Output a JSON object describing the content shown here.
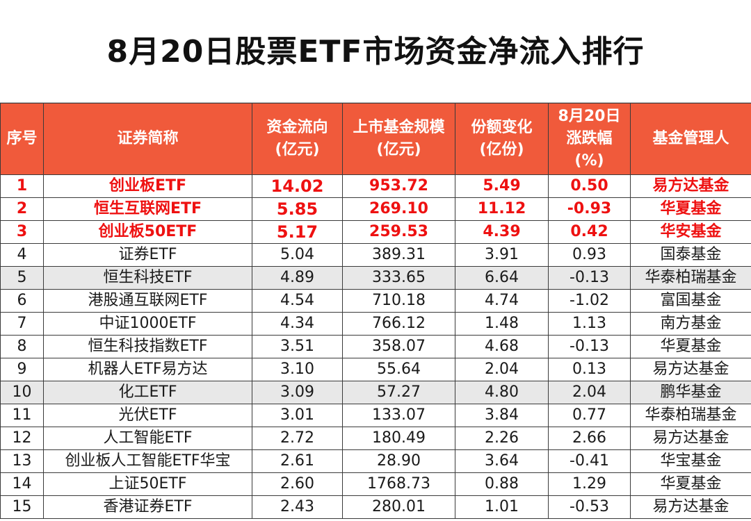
{
  "title": "8月20日股票ETF市场资金净流入排行",
  "headers": {
    "rank": [
      "序号"
    ],
    "name": [
      "证券简称"
    ],
    "flow": [
      "资金流向",
      "(亿元)"
    ],
    "scale": [
      "上市基金规模",
      "(亿元)"
    ],
    "shares": [
      "份额变化",
      "(亿份)"
    ],
    "change": [
      "8月20日",
      "涨跌幅",
      "(%)"
    ],
    "manager": [
      "基金管理人"
    ]
  },
  "rows": [
    {
      "rank": "1",
      "name": "创业板ETF",
      "flow": "14.02",
      "scale": "953.72",
      "shares": "5.49",
      "change": "0.50",
      "manager": "易方达基金",
      "highlight": true,
      "grey": false
    },
    {
      "rank": "2",
      "name": "恒生互联网ETF",
      "flow": "5.85",
      "scale": "269.10",
      "shares": "11.12",
      "change": "-0.93",
      "manager": "华夏基金",
      "highlight": true,
      "grey": false
    },
    {
      "rank": "3",
      "name": "创业板50ETF",
      "flow": "5.17",
      "scale": "259.53",
      "shares": "4.39",
      "change": "0.42",
      "manager": "华安基金",
      "highlight": true,
      "grey": false
    },
    {
      "rank": "4",
      "name": "证券ETF",
      "flow": "5.04",
      "scale": "389.31",
      "shares": "3.91",
      "change": "0.93",
      "manager": "国泰基金",
      "highlight": false,
      "grey": false
    },
    {
      "rank": "5",
      "name": "恒生科技ETF",
      "flow": "4.89",
      "scale": "333.65",
      "shares": "6.64",
      "change": "-0.13",
      "manager": "华泰柏瑞基金",
      "highlight": false,
      "grey": true
    },
    {
      "rank": "6",
      "name": "港股通互联网ETF",
      "flow": "4.54",
      "scale": "710.18",
      "shares": "4.74",
      "change": "-1.02",
      "manager": "富国基金",
      "highlight": false,
      "grey": false
    },
    {
      "rank": "7",
      "name": "中证1000ETF",
      "flow": "4.34",
      "scale": "766.12",
      "shares": "1.48",
      "change": "1.13",
      "manager": "南方基金",
      "highlight": false,
      "grey": false
    },
    {
      "rank": "8",
      "name": "恒生科技指数ETF",
      "flow": "3.51",
      "scale": "358.07",
      "shares": "4.68",
      "change": "-0.13",
      "manager": "华夏基金",
      "highlight": false,
      "grey": false
    },
    {
      "rank": "9",
      "name": "机器人ETF易方达",
      "flow": "3.10",
      "scale": "55.64",
      "shares": "2.04",
      "change": "0.13",
      "manager": "易方达基金",
      "highlight": false,
      "grey": false
    },
    {
      "rank": "10",
      "name": "化工ETF",
      "flow": "3.09",
      "scale": "57.27",
      "shares": "4.80",
      "change": "2.04",
      "manager": "鹏华基金",
      "highlight": false,
      "grey": true
    },
    {
      "rank": "11",
      "name": "光伏ETF",
      "flow": "3.01",
      "scale": "133.07",
      "shares": "3.84",
      "change": "0.77",
      "manager": "华泰柏瑞基金",
      "highlight": false,
      "grey": false
    },
    {
      "rank": "12",
      "name": "人工智能ETF",
      "flow": "2.72",
      "scale": "180.49",
      "shares": "2.26",
      "change": "2.66",
      "manager": "易方达基金",
      "highlight": false,
      "grey": false
    },
    {
      "rank": "13",
      "name": "创业板人工智能ETF华宝",
      "flow": "2.61",
      "scale": "28.90",
      "shares": "3.64",
      "change": "-0.41",
      "manager": "华宝基金",
      "highlight": false,
      "grey": false
    },
    {
      "rank": "14",
      "name": "上证50ETF",
      "flow": "2.60",
      "scale": "1768.73",
      "shares": "0.88",
      "change": "1.29",
      "manager": "华夏基金",
      "highlight": false,
      "grey": false
    },
    {
      "rank": "15",
      "name": "香港证券ETF",
      "flow": "2.43",
      "scale": "280.01",
      "shares": "1.01",
      "change": "-0.53",
      "manager": "易方达基金",
      "highlight": false,
      "grey": false
    }
  ],
  "colors": {
    "header_bg": "#f05a3b",
    "header_text": "#ffffff",
    "highlight_text": "#ee1111",
    "grey_row": "#e8e8e8"
  }
}
